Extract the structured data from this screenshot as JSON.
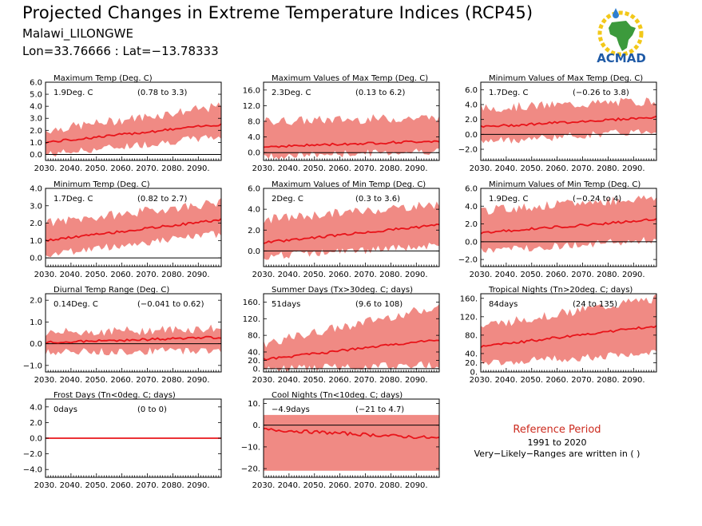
{
  "header": {
    "title": "Projected Changes in Extreme Temperature Indices (RCP45)",
    "station": "Malawi_LILONGWE",
    "coords": "Lon=33.76666 : Lat=−13.78333"
  },
  "logo": {
    "text": "ACMAD"
  },
  "reference": {
    "title": "Reference Period",
    "years": "1991 to 2020",
    "note": "Very−Likely−Ranges are written in ( )"
  },
  "colors": {
    "band": "#f08a84",
    "line": "#e8141a",
    "zero": "#000000"
  },
  "chart_data": [
    {
      "type": "area",
      "title": "Maximum Temp (Deg. C)",
      "mean_label": "1.9Deg. C",
      "range_label": "(0.78 to 3.3)",
      "x": [
        2030,
        2099
      ],
      "ylim": [
        -0.5,
        6.0
      ],
      "yticks": [
        "0.0",
        "1.0",
        "2.0",
        "3.0",
        "4.0",
        "5.0",
        "6.0"
      ],
      "ytick_values": [
        0,
        1,
        2,
        3,
        4,
        5,
        6
      ],
      "mean_start": 1.0,
      "mean_end": 2.5,
      "band_low": [
        0.0,
        1.5
      ],
      "band_high": [
        2.0,
        4.0
      ]
    },
    {
      "type": "area",
      "title": "Maximum Values of Max Temp (Deg. C)",
      "mean_label": "2.3Deg. C",
      "range_label": "(0.13 to 6.2)",
      "x": [
        2030,
        2099
      ],
      "ylim": [
        -2.0,
        18.0
      ],
      "yticks": [
        "0.0",
        "4.0",
        "8.0",
        "12.0",
        "16.0"
      ],
      "ytick_values": [
        0,
        4,
        8,
        12,
        16
      ],
      "mean_start": 1.5,
      "mean_end": 3.0,
      "band_low": [
        -1.0,
        0.5
      ],
      "band_high": [
        8.0,
        9.0
      ]
    },
    {
      "type": "area",
      "title": "Minimum Values of Max Temp (Deg. C)",
      "mean_label": "1.7Deg. C",
      "range_label": "(−0.26 to 3.8)",
      "x": [
        2030,
        2099
      ],
      "ylim": [
        -3.5,
        7.0
      ],
      "yticks": [
        "−2.0",
        "0.0",
        "2.0",
        "4.0",
        "6.0"
      ],
      "ytick_values": [
        -2,
        0,
        2,
        4,
        6
      ],
      "mean_start": 1.0,
      "mean_end": 2.3,
      "band_low": [
        -1.0,
        0.5
      ],
      "band_high": [
        3.5,
        4.5
      ]
    },
    {
      "type": "area",
      "title": "Minimum Temp (Deg. C)",
      "mean_label": "1.7Deg. C",
      "range_label": "(0.82 to 2.7)",
      "x": [
        2030,
        2099
      ],
      "ylim": [
        -0.5,
        4.0
      ],
      "yticks": [
        "0.0",
        "1.0",
        "2.0",
        "3.0",
        "4.0"
      ],
      "ytick_values": [
        0,
        1,
        2,
        3,
        4
      ],
      "mean_start": 1.0,
      "mean_end": 2.2,
      "band_low": [
        0.2,
        1.4
      ],
      "band_high": [
        2.0,
        3.2
      ]
    },
    {
      "type": "area",
      "title": "Maximum Values of Min Temp (Deg. C)",
      "mean_label": "2Deg. C",
      "range_label": "(0.3 to 3.6)",
      "x": [
        2030,
        2099
      ],
      "ylim": [
        -1.5,
        6.0
      ],
      "yticks": [
        "0.0",
        "2.0",
        "4.0",
        "6.0"
      ],
      "ytick_values": [
        0,
        2,
        4,
        6
      ],
      "mean_start": 0.8,
      "mean_end": 2.5,
      "band_low": [
        -0.5,
        0.5
      ],
      "band_high": [
        3.0,
        4.5
      ]
    },
    {
      "type": "area",
      "title": "Minimum Values of Min Temp (Deg. C)",
      "mean_label": "1.9Deg. C",
      "range_label": "(−0.24 to 4)",
      "x": [
        2030,
        2099
      ],
      "ylim": [
        -2.8,
        6.0
      ],
      "yticks": [
        "−2.0",
        "0.0",
        "2.0",
        "4.0",
        "6.0"
      ],
      "ytick_values": [
        -2,
        0,
        2,
        4,
        6
      ],
      "mean_start": 1.0,
      "mean_end": 2.5,
      "band_low": [
        -1.0,
        0.2
      ],
      "band_high": [
        3.5,
        5.0
      ]
    },
    {
      "type": "area",
      "title": "Diurnal Temp Range (Deg. C)",
      "mean_label": "0.14Deg. C",
      "range_label": "(−0.041 to 0.62)",
      "x": [
        2030,
        2099
      ],
      "ylim": [
        -1.3,
        2.3
      ],
      "yticks": [
        "−1.0",
        "0.0",
        "1.0",
        "2.0"
      ],
      "ytick_values": [
        -1,
        0,
        1,
        2
      ],
      "mean_start": 0.05,
      "mean_end": 0.3,
      "band_low": [
        -0.4,
        -0.3
      ],
      "band_high": [
        0.5,
        0.7
      ]
    },
    {
      "type": "area",
      "title": "Summer Days (Tx>30deg. C; days)",
      "mean_label": "51days",
      "range_label": "(9.6 to 108)",
      "x": [
        2030,
        2099
      ],
      "ylim": [
        -8,
        180
      ],
      "yticks": [
        "0.",
        "20.",
        "40.",
        "80.",
        "120.",
        "160."
      ],
      "ytick_values": [
        0,
        20,
        40,
        80,
        120,
        160
      ],
      "mean_start": 22,
      "mean_end": 70,
      "band_low": [
        0,
        10
      ],
      "band_high": [
        60,
        150
      ]
    },
    {
      "type": "area",
      "title": "Tropical Nights (Tn>20deg. C; days)",
      "mean_label": "84days",
      "range_label": "(24 to 135)",
      "x": [
        2030,
        2099
      ],
      "ylim": [
        0,
        170
      ],
      "yticks": [
        "0.",
        "20.",
        "40.",
        "80.",
        "120.",
        "160."
      ],
      "ytick_values": [
        0,
        20,
        40,
        80,
        120,
        160
      ],
      "mean_start": 55,
      "mean_end": 100,
      "band_low": [
        20,
        40
      ],
      "band_high": [
        100,
        160
      ]
    },
    {
      "type": "area",
      "title": "Frost Days (Tn<0deg. C; days)",
      "mean_label": "0days",
      "range_label": "(0 to 0)",
      "x": [
        2030,
        2099
      ],
      "ylim": [
        -5,
        5
      ],
      "yticks": [
        "−4.0",
        "−2.0",
        "0.0",
        "2.0",
        "4.0"
      ],
      "ytick_values": [
        -4,
        -2,
        0,
        2,
        4
      ],
      "mean_start": 0,
      "mean_end": 0,
      "band_low": [
        0,
        0
      ],
      "band_high": [
        0,
        0
      ]
    },
    {
      "type": "area",
      "title": "Cool Nights (Tn<10deg. C; days)",
      "mean_label": "−4.9days",
      "range_label": "(−21 to 4.7)",
      "x": [
        2030,
        2099
      ],
      "ylim": [
        -24,
        12
      ],
      "yticks": [
        "−20.",
        "−10.",
        "0.",
        "10."
      ],
      "ytick_values": [
        -20,
        -10,
        0,
        10
      ],
      "mean_start": -2,
      "mean_end": -6,
      "band_low": [
        -21,
        -21
      ],
      "band_high": [
        4.7,
        4.7
      ]
    }
  ],
  "xticks": [
    "2030.",
    "2040.",
    "2050.",
    "2060.",
    "2070.",
    "2080.",
    "2090."
  ],
  "xtick_values": [
    2030,
    2040,
    2050,
    2060,
    2070,
    2080,
    2090
  ]
}
